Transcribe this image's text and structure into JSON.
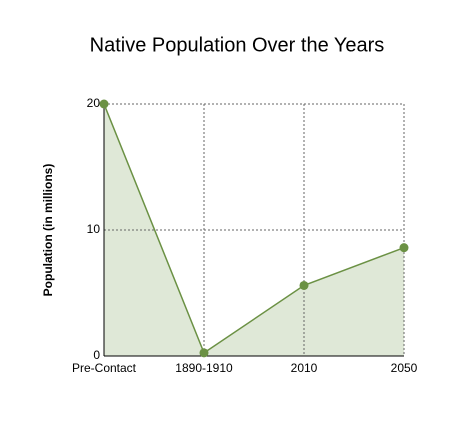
{
  "chart_data": {
    "type": "area",
    "title": "Native Population Over the Years",
    "y_label": "Population (in millions)",
    "categories": [
      "Pre-Contact",
      "1890-1910",
      "2010",
      "2050"
    ],
    "values": [
      20,
      0.25,
      5.6,
      8.6
    ],
    "color": "#6b9144",
    "fill_color": "#dfe8d7",
    "ylim": [
      0,
      20
    ],
    "yticks": [
      0,
      10,
      20
    ],
    "grid": true
  }
}
